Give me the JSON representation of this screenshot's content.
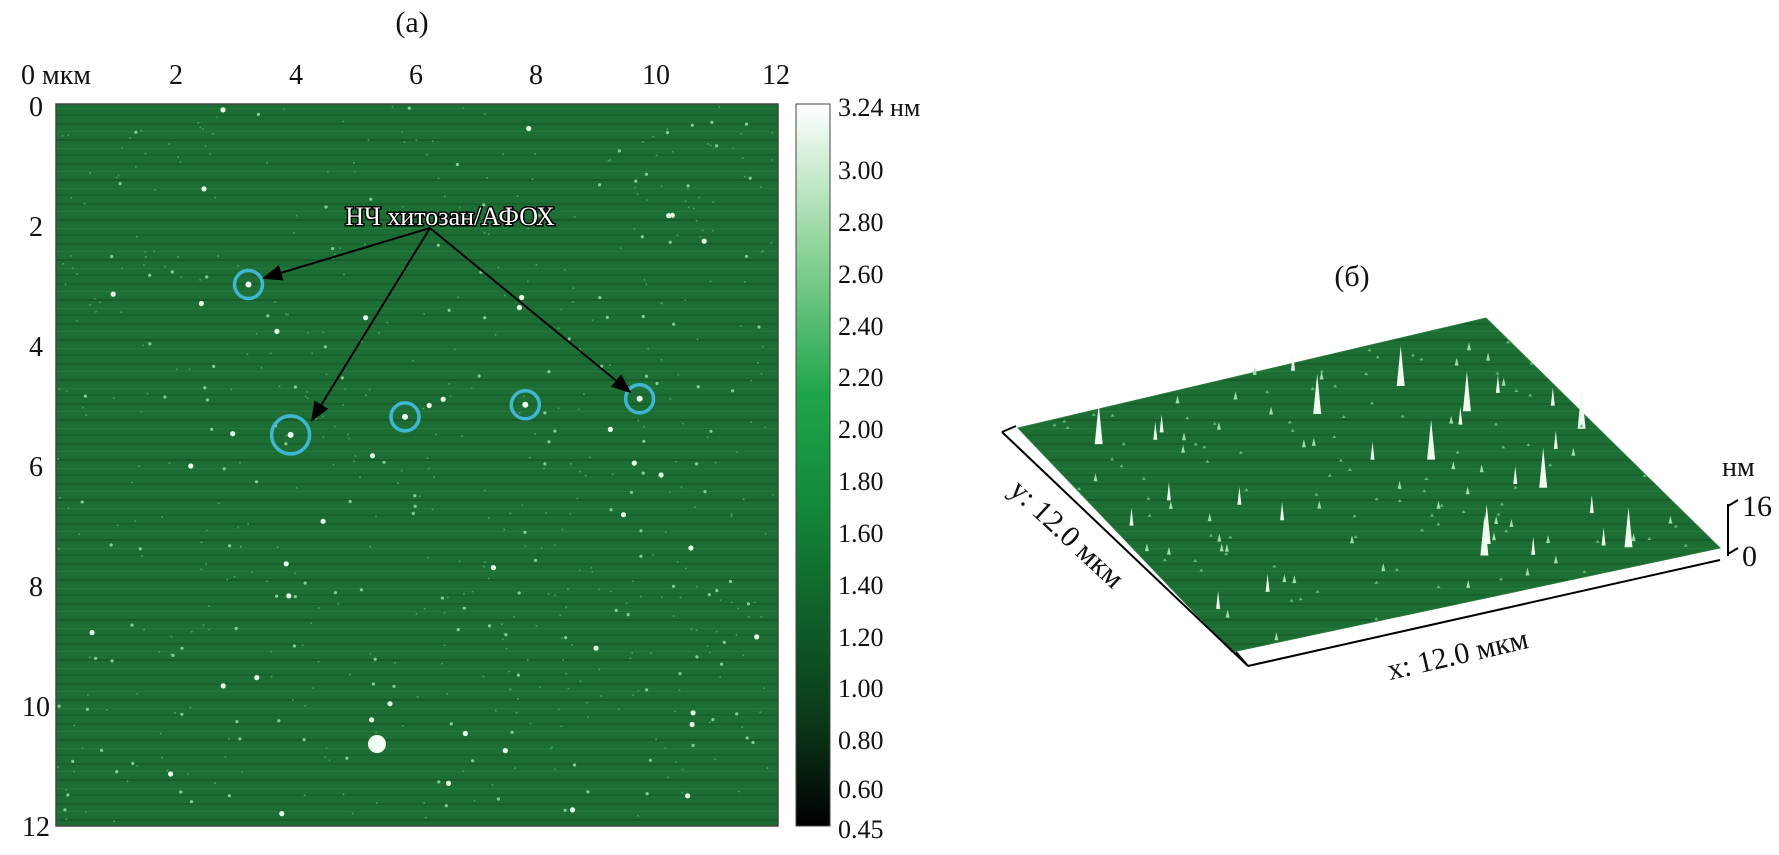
{
  "panel_a": {
    "label": "(a)",
    "x_ticks": [
      "0 мкм",
      "2",
      "4",
      "6",
      "8",
      "10",
      "12"
    ],
    "y_ticks": [
      "0",
      "2",
      "4",
      "6",
      "8",
      "10",
      "12"
    ],
    "annotation": "НЧ хитозан/АФОХ",
    "marked_particles": [
      {
        "x": 3.2,
        "y": 3.0
      },
      {
        "x": 3.9,
        "y": 5.5
      },
      {
        "x": 5.8,
        "y": 5.2
      },
      {
        "x": 7.8,
        "y": 5.0
      },
      {
        "x": 9.7,
        "y": 4.9
      }
    ],
    "colorbar": {
      "ticks": [
        "3.24 нм",
        "3.00",
        "2.80",
        "2.60",
        "2.40",
        "2.20",
        "2.00",
        "1.80",
        "1.60",
        "1.40",
        "1.20",
        "1.00",
        "0.80",
        "0.60",
        "0.45"
      ],
      "colors": {
        "low": "#000000",
        "mid": "#1a9a3e",
        "high": "#ffffff"
      }
    }
  },
  "panel_b": {
    "label": "(б)",
    "y_axis_label": "y: 12.0 мкм",
    "x_axis_label": "x: 12.0 мкм",
    "z_unit": "нм",
    "z_ticks": [
      "16",
      "0"
    ]
  },
  "colors": {
    "surface": "#1f6b35",
    "marker": "#3fb6d2",
    "arrow": "#000000"
  }
}
